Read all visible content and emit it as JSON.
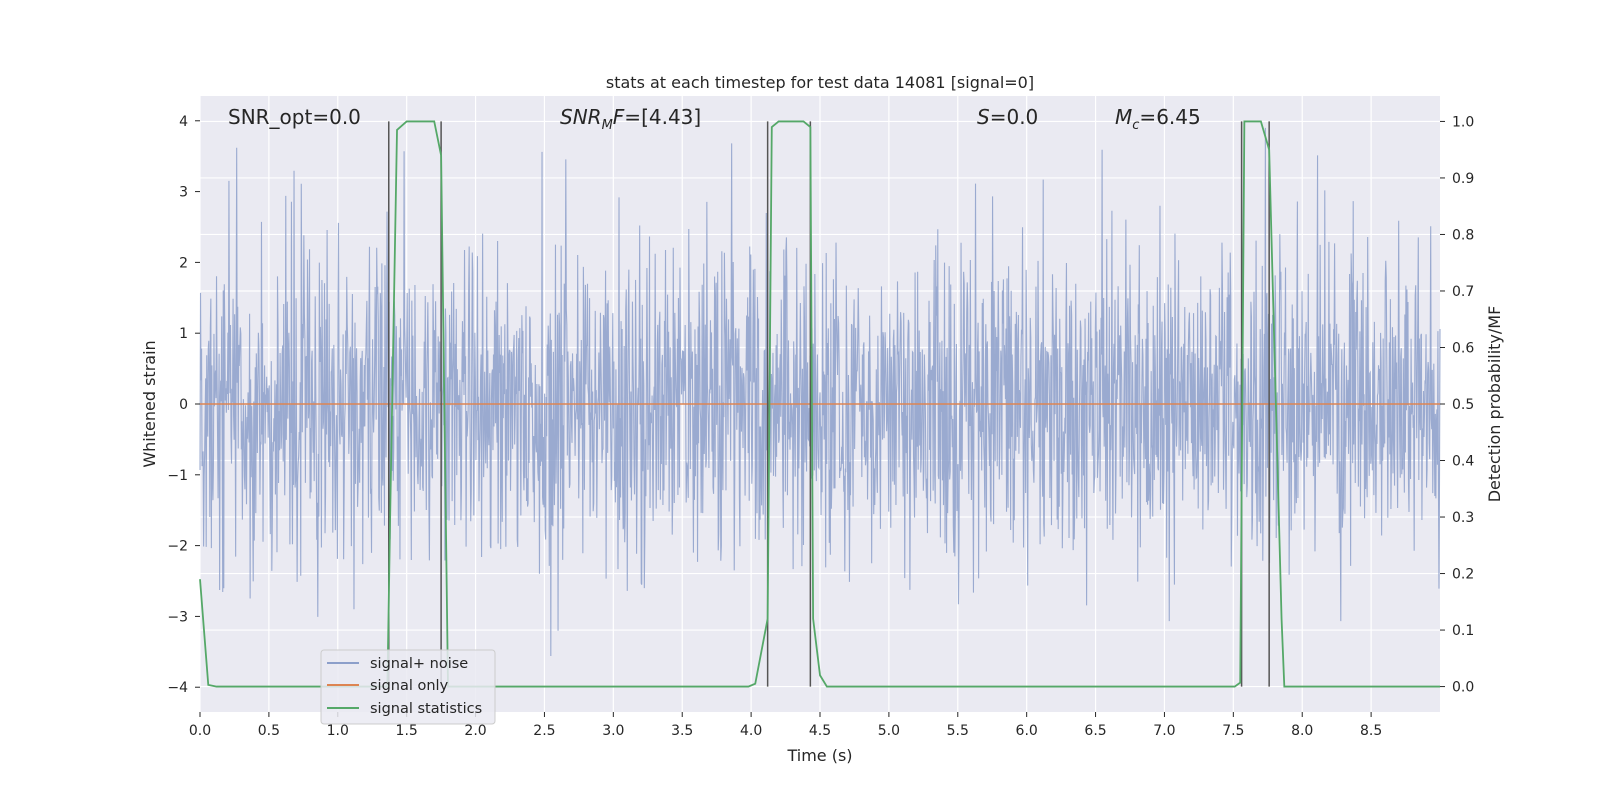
{
  "chart_data": {
    "type": "line",
    "title": "stats at each timestep for test data 14081 [signal=0]",
    "xlabel": "Time (s)",
    "ylabel": "Whitened strain",
    "ylabel_right": "Detection probability/MF",
    "xlim": [
      0,
      9.0
    ],
    "ylim": [
      -4.35,
      4.35
    ],
    "ylim_right": [
      -0.045,
      1.045
    ],
    "x_ticks": [
      0.0,
      0.5,
      1.0,
      1.5,
      2.0,
      2.5,
      3.0,
      3.5,
      4.0,
      4.5,
      5.0,
      5.5,
      6.0,
      6.5,
      7.0,
      7.5,
      8.0,
      8.5
    ],
    "x_tick_labels": [
      "0.0",
      "0.5",
      "1.0",
      "1.5",
      "2.0",
      "2.5",
      "3.0",
      "3.5",
      "4.0",
      "4.5",
      "5.0",
      "5.5",
      "6.0",
      "6.5",
      "7.0",
      "7.5",
      "8.0",
      "8.5"
    ],
    "y_ticks": [
      4,
      3,
      2,
      1,
      0,
      -1,
      -2,
      -3,
      -4
    ],
    "y_tick_labels": [
      "4",
      "3",
      "2",
      "1",
      "0",
      "−1",
      "−2",
      "−3",
      "−4"
    ],
    "y_right_ticks": [
      1.0,
      0.9,
      0.8,
      0.7,
      0.6,
      0.5,
      0.4,
      0.3,
      0.2,
      0.1,
      0.0
    ],
    "y_right_tick_labels": [
      "1.0",
      "0.9",
      "0.8",
      "0.7",
      "0.6",
      "0.5",
      "0.4",
      "0.3",
      "0.2",
      "0.1",
      "0.0"
    ],
    "grid": true,
    "legend_placement": "lower-left",
    "colors": {
      "noise": "#8c9fca",
      "signal": "#dd8452",
      "stats": "#55a868",
      "vlines": "#555555",
      "background": "#eaeaf2",
      "grid": "#ffffff"
    },
    "series": [
      {
        "name": "signal+ noise",
        "kind": "noise",
        "amplitude_typical": 2.2,
        "amplitude_peak": 3.9
      },
      {
        "name": "signal only",
        "kind": "line",
        "x": [
          0.0,
          9.0
        ],
        "y": [
          0.0,
          0.0
        ]
      },
      {
        "name": "signal statistics",
        "kind": "line",
        "axis": "right",
        "x": [
          0.0,
          0.06,
          0.12,
          1.36,
          1.38,
          1.43,
          1.5,
          1.55,
          1.6,
          1.65,
          1.7,
          1.75,
          1.8,
          3.98,
          4.03,
          4.12,
          4.15,
          4.2,
          4.25,
          4.3,
          4.35,
          4.38,
          4.43,
          4.45,
          4.5,
          4.55,
          7.51,
          7.55,
          7.58,
          7.62,
          7.7,
          7.76,
          7.85,
          7.87,
          9.0
        ],
        "y": [
          0.19,
          0.003,
          0.0,
          0.0,
          0.3,
          0.985,
          1.0,
          1.0,
          1.0,
          1.0,
          1.0,
          0.94,
          0.0,
          0.0,
          0.005,
          0.12,
          0.99,
          1.0,
          1.0,
          1.0,
          1.0,
          1.0,
          0.99,
          0.12,
          0.02,
          0.0,
          0.0,
          0.007,
          1.0,
          1.0,
          1.0,
          0.95,
          0.12,
          0.0,
          0.0
        ]
      }
    ],
    "vertical_lines_x": [
      1.37,
      1.75,
      4.12,
      4.43,
      7.56,
      7.76
    ],
    "annotations": [
      {
        "key": "snr_opt",
        "label": "SNR_opt",
        "value": "0.0"
      },
      {
        "key": "snr_mf",
        "label": "SNR",
        "subscript": "M",
        "suffix": "F",
        "value": "[4.43]"
      },
      {
        "key": "s",
        "label": "S",
        "value": "0.0"
      },
      {
        "key": "mc",
        "label": "M",
        "subscript": "c",
        "value": "6.45"
      }
    ]
  }
}
